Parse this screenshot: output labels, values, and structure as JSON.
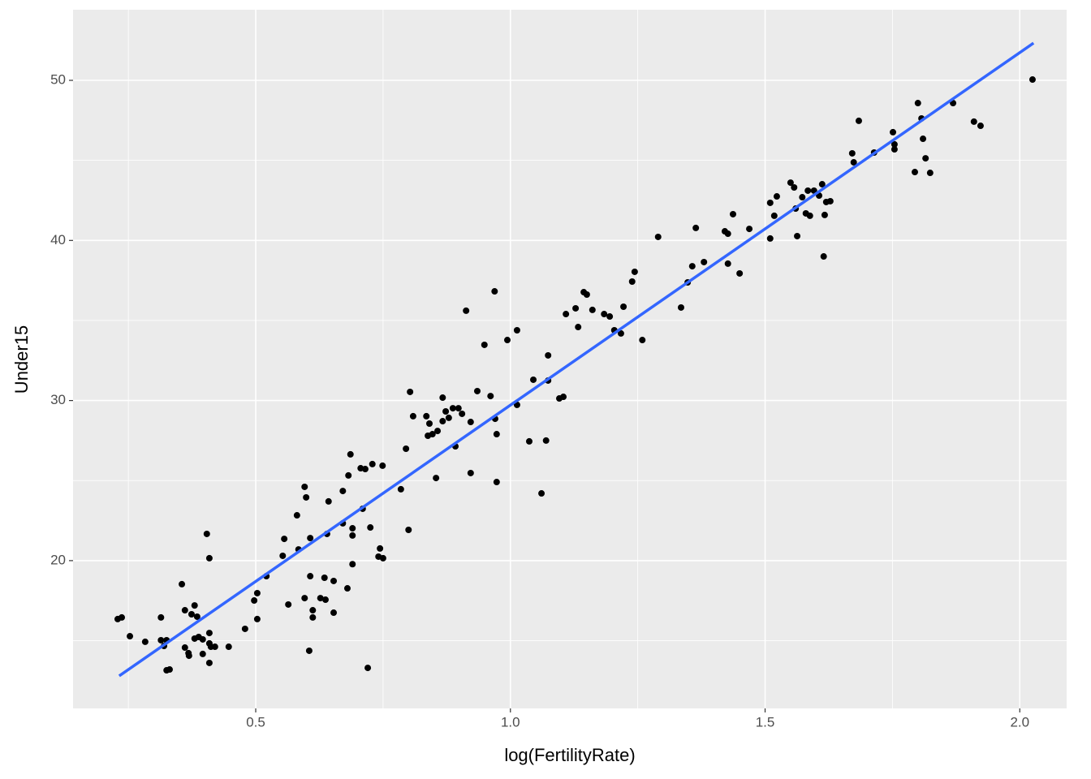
{
  "chart_data": {
    "type": "scatter",
    "x_label": "log(FertilityRate)",
    "y_label": "Under15",
    "x": [
      0.229,
      0.237,
      0.253,
      0.283,
      0.314,
      0.314,
      0.32,
      0.325,
      0.325,
      0.331,
      0.355,
      0.361,
      0.361,
      0.368,
      0.369,
      0.374,
      0.38,
      0.38,
      0.385,
      0.388,
      0.396,
      0.396,
      0.404,
      0.409,
      0.409,
      0.409,
      0.409,
      0.412,
      0.42,
      0.447,
      0.479,
      0.497,
      0.503,
      0.503,
      0.521,
      0.553,
      0.556,
      0.564,
      0.581,
      0.584,
      0.596,
      0.599,
      0.596,
      0.605,
      0.607,
      0.607,
      0.612,
      0.612,
      0.627,
      0.635,
      0.637,
      0.64,
      0.643,
      0.653,
      0.653,
      0.671,
      0.671,
      0.68,
      0.682,
      0.686,
      0.69,
      0.69,
      0.69,
      0.706,
      0.71,
      0.715,
      0.72,
      0.725,
      0.729,
      0.741,
      0.744,
      0.749,
      0.75,
      0.785,
      0.795,
      0.8,
      0.803,
      0.809,
      0.835,
      0.838,
      0.841,
      0.847,
      0.854,
      0.857,
      0.867,
      0.867,
      0.873,
      0.879,
      0.887,
      0.892,
      0.898,
      0.905,
      0.913,
      0.922,
      0.922,
      0.935,
      0.949,
      0.961,
      0.969,
      0.97,
      0.973,
      0.973,
      0.994,
      1.013,
      1.013,
      1.037,
      1.045,
      1.061,
      1.07,
      1.074,
      1.074,
      1.096,
      1.104,
      1.109,
      1.128,
      1.133,
      1.144,
      1.15,
      1.161,
      1.184,
      1.195,
      1.204,
      1.217,
      1.222,
      1.239,
      1.244,
      1.259,
      1.29,
      1.335,
      1.348,
      1.357,
      1.364,
      1.38,
      1.421,
      1.427,
      1.427,
      1.437,
      1.45,
      1.469,
      1.51,
      1.51,
      1.518,
      1.523,
      1.55,
      1.557,
      1.56,
      1.563,
      1.573,
      1.58,
      1.584,
      1.588,
      1.596,
      1.606,
      1.612,
      1.615,
      1.617,
      1.62,
      1.628,
      1.671,
      1.674,
      1.684,
      1.714,
      1.751,
      1.754,
      1.754,
      1.794,
      1.8,
      1.807,
      1.81,
      1.815,
      1.824,
      1.869,
      1.91,
      1.923,
      2.025
    ],
    "values": [
      16.35,
      16.45,
      15.28,
      14.93,
      16.45,
      15.03,
      14.67,
      15.03,
      13.15,
      13.2,
      18.53,
      16.9,
      14.57,
      14.22,
      14.06,
      16.65,
      17.2,
      15.13,
      16.5,
      15.23,
      14.17,
      15.08,
      21.67,
      20.15,
      15.48,
      14.83,
      13.61,
      14.62,
      14.62,
      14.62,
      15.74,
      17.51,
      16.35,
      17.97,
      19.03,
      20.3,
      21.36,
      17.26,
      22.83,
      20.7,
      24.61,
      23.95,
      17.66,
      14.37,
      21.41,
      19.03,
      16.9,
      16.45,
      17.66,
      18.93,
      17.56,
      21.67,
      23.7,
      18.73,
      16.75,
      24.35,
      22.33,
      18.27,
      25.32,
      26.64,
      22.02,
      21.57,
      19.78,
      25.77,
      23.24,
      25.72,
      13.3,
      22.07,
      26.03,
      20.25,
      20.76,
      25.93,
      20.15,
      24.46,
      26.99,
      21.92,
      30.54,
      29.02,
      29.02,
      27.8,
      28.56,
      27.9,
      25.16,
      28.1,
      30.18,
      28.71,
      29.32,
      28.92,
      29.52,
      27.14,
      29.52,
      29.17,
      35.61,
      28.66,
      25.47,
      30.59,
      33.48,
      30.28,
      36.82,
      28.86,
      27.9,
      24.91,
      33.78,
      34.39,
      29.73,
      27.45,
      31.3,
      24.2,
      27.5,
      32.82,
      31.25,
      30.13,
      30.23,
      35.4,
      35.76,
      34.59,
      36.77,
      36.62,
      35.66,
      35.4,
      35.25,
      34.39,
      34.19,
      35.86,
      37.43,
      38.04,
      33.78,
      40.22,
      35.81,
      37.38,
      38.39,
      40.78,
      38.65,
      40.57,
      40.42,
      38.55,
      41.64,
      37.94,
      40.72,
      40.12,
      42.35,
      41.54,
      42.75,
      43.61,
      43.31,
      41.99,
      40.27,
      42.7,
      41.69,
      43.11,
      41.54,
      43.11,
      42.8,
      43.51,
      39.0,
      41.59,
      42.4,
      42.45,
      45.44,
      44.88,
      47.47,
      45.49,
      46.76,
      46.0,
      45.69,
      44.27,
      48.58,
      47.62,
      46.35,
      45.13,
      44.22,
      48.58,
      47.42,
      47.16,
      50.05
    ],
    "color": "#000000",
    "trend_line": {
      "x": [
        0.232,
        2.027
      ],
      "values": [
        12.8,
        52.33
      ],
      "color": "#3366FF"
    },
    "xlim": [
      0.1414,
      2.092
    ],
    "ylim": [
      10.77,
      54.41
    ],
    "xticks": [
      {
        "value": 0.5,
        "label": "0.5"
      },
      {
        "value": 1.0,
        "label": "1.0"
      },
      {
        "value": 1.5,
        "label": "1.5"
      },
      {
        "value": 2.0,
        "label": "2.0"
      }
    ],
    "yticks": [
      20,
      30,
      40,
      50
    ],
    "x_minor_grid": [
      0.25,
      0.75,
      1.25,
      1.75
    ],
    "y_minor_grid": [
      15,
      25,
      35,
      45
    ],
    "grid": true,
    "panel_color": "#EBEBEB"
  }
}
